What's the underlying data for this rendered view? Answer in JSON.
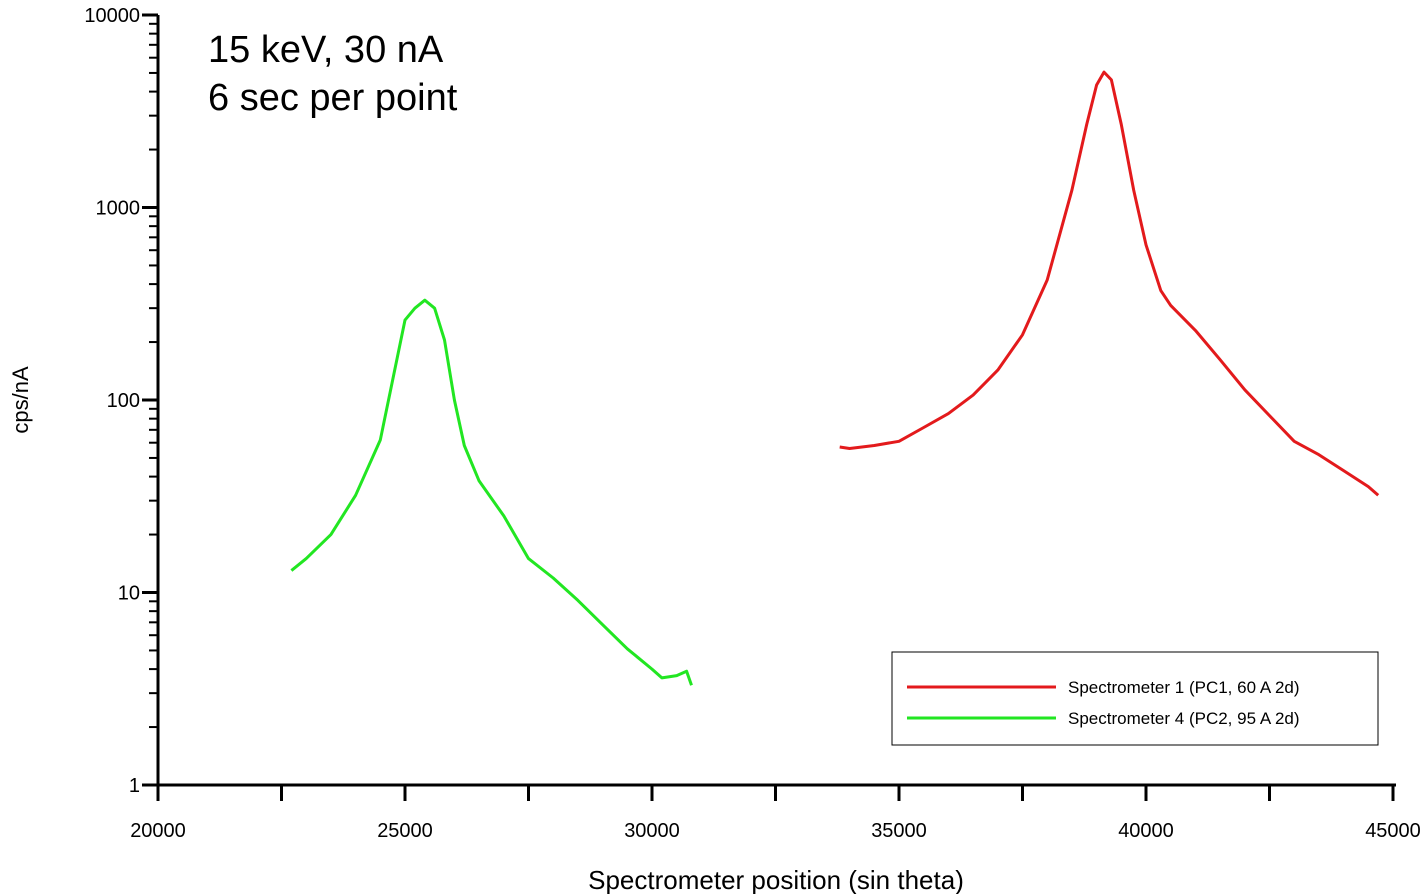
{
  "chart_data": {
    "type": "line",
    "annotation": [
      "15 keV, 30 nA",
      "6 sec per point"
    ],
    "x_label": "Spectrometer position (sin theta)",
    "y_label": "cps/nA",
    "xlim": [
      20000,
      45000
    ],
    "xticks": [
      20000,
      25000,
      30000,
      35000,
      40000,
      45000
    ],
    "ylim": [
      1,
      10000
    ],
    "yticks": [
      1,
      10,
      100,
      1000,
      10000
    ],
    "y_log": true,
    "legend": "lower right",
    "series": [
      {
        "name": "Spectrometer 1 (PC1, 60 A 2d)",
        "color": "#e31a1c",
        "x": [
          33800,
          34000,
          34500,
          35000,
          35500,
          36000,
          36500,
          37000,
          37500,
          38000,
          38500,
          38800,
          39000,
          39150,
          39300,
          39500,
          39750,
          40000,
          40300,
          40500,
          41000,
          41500,
          42000,
          42500,
          43000,
          43500,
          44000,
          44500,
          44700
        ],
        "values": [
          57,
          56,
          58,
          61,
          72,
          85,
          106,
          143,
          218,
          420,
          1230,
          2700,
          4330,
          5050,
          4600,
          2700,
          1230,
          640,
          370,
          310,
          230,
          162,
          113,
          83,
          61,
          52,
          43,
          35.5,
          32
        ]
      },
      {
        "name": "Spectrometer 4 (PC2, 95 A 2d)",
        "color": "#22e622",
        "x": [
          22700,
          23000,
          23500,
          24000,
          24500,
          25000,
          25200,
          25400,
          25600,
          25800,
          26000,
          26200,
          26500,
          27000,
          27500,
          28000,
          28500,
          29000,
          29500,
          30000,
          30200,
          30500,
          30700,
          30800
        ],
        "values": [
          13,
          15,
          20,
          32,
          62,
          260,
          300,
          330,
          300,
          205,
          100,
          58,
          38,
          25,
          15,
          11.9,
          9.1,
          6.8,
          5.1,
          4.0,
          3.6,
          3.7,
          3.9,
          3.3
        ]
      }
    ]
  }
}
